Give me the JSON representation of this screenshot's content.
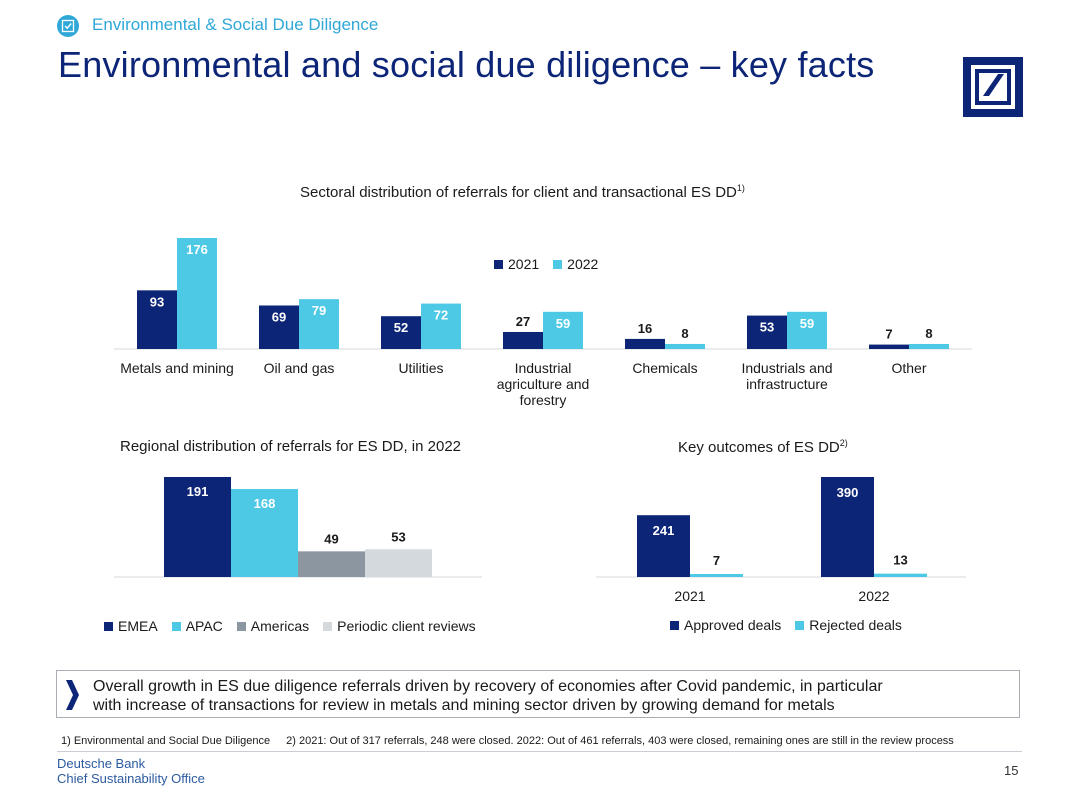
{
  "header": {
    "section_label": "Environmental & Social Due Diligence",
    "title": "Environmental and social due diligence – key facts"
  },
  "colors": {
    "navy": "#0c2577",
    "cyan": "#4dc9e5",
    "grey": "#8b96a1",
    "light_grey": "#d4d9de",
    "accent": "#2fa8d8"
  },
  "chart_data": [
    {
      "type": "bar",
      "title": "Sectoral distribution of referrals for client and transactional ES DD",
      "title_note": "1)",
      "categories": [
        "Metals and mining",
        "Oil and gas",
        "Utilities",
        "Industrial agriculture and forestry",
        "Chemicals",
        "Industrials and infrastructure",
        "Other"
      ],
      "series": [
        {
          "name": "2021",
          "values": [
            93,
            69,
            52,
            27,
            16,
            53,
            7
          ]
        },
        {
          "name": "2022",
          "values": [
            176,
            79,
            72,
            59,
            8,
            59,
            8
          ]
        }
      ],
      "legend": "top-center",
      "ylim": [
        0,
        176
      ]
    },
    {
      "type": "bar",
      "title": "Regional distribution of referrals for ES DD, in 2022",
      "categories": [
        "EMEA",
        "APAC",
        "Americas",
        "Periodic client reviews"
      ],
      "values": [
        191,
        168,
        49,
        53
      ],
      "legend": "bottom",
      "ylim": [
        0,
        191
      ]
    },
    {
      "type": "bar",
      "title": "Key outcomes of ES DD",
      "title_note": "2)",
      "categories": [
        "2021",
        "2022"
      ],
      "series": [
        {
          "name": "Approved deals",
          "values": [
            241,
            390
          ]
        },
        {
          "name": "Rejected deals",
          "values": [
            7,
            13
          ]
        }
      ],
      "legend": "bottom",
      "ylim": [
        0,
        390
      ]
    }
  ],
  "summary": {
    "line1": "Overall growth in ES due diligence referrals driven by recovery of economies after Covid pandemic, in particular",
    "line2": "with increase of transactions for review in metals and mining sector driven by growing demand for metals"
  },
  "footnotes": {
    "note1": "1) Environmental and Social Due Diligence",
    "note2": "2) 2021: Out of 317 referrals, 248 were closed. 2022: Out of 461 referrals, 403 were closed, remaining ones are still in the review process"
  },
  "footer": {
    "org_line1": "Deutsche Bank",
    "org_line2": "Chief Sustainability Office",
    "page_number": "15"
  }
}
